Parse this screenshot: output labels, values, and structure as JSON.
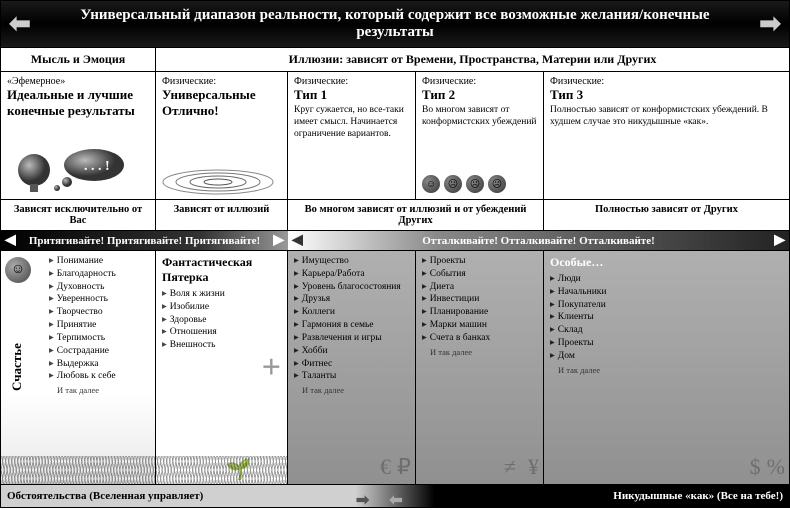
{
  "banner": "Универсальный диапазон реальности, который содержит все возможные желания/конечные результаты",
  "header_left": "Мысль и Эмоция",
  "header_right": "Иллюзии: зависят от Времени, Пространства, Материи или Других",
  "types": {
    "c1": {
      "sub": "«Эфемерное»",
      "title": "Идеальные и лучшие конечные результаты"
    },
    "c2": {
      "sub": "Физические:",
      "title": "Универсальные Отлично!"
    },
    "c3": {
      "sub": "Физические:",
      "title": "Тип 1",
      "desc": "Круг сужается, но все-таки имеет смысл. Начинается ограничение вариантов."
    },
    "c4": {
      "sub": "Физические:",
      "title": "Тип 2",
      "desc": "Во многом зависят от конформистских убеждений"
    },
    "c5": {
      "sub": "Физические:",
      "title": "Тип 3",
      "desc": "Полностью зависят от конформистских убеждений. В худшем случае это никудышные «как»."
    }
  },
  "depends": {
    "d1": "Зависят исключительно от Вас",
    "d2": "Зависят от иллюзий",
    "d3": "Во многом зависят от иллюзий и от убеждений Других",
    "d4": "Полностью зависят от Других"
  },
  "attract": "Притягивайте! Притягивайте! Притягивайте!",
  "repel": "Отталкивайте! Отталкивайте! Отталкивайте!",
  "happiness": "Счастье",
  "lists": {
    "l1": [
      "Понимание",
      "Благодарность",
      "Духовность",
      "Уверенность",
      "Творчество",
      "Принятие",
      "Терпимость",
      "Сострадание",
      "Выдержка",
      "Любовь к себе"
    ],
    "l2_title": "Фантастическая Пятерка",
    "l2": [
      "Воля к жизни",
      "Изобилие",
      "Здоровье",
      "Отношения",
      "Внешность"
    ],
    "l3": [
      "Имущество",
      "Карьера/Работа",
      "Уровень благосостояния",
      "Друзья",
      "Коллеги",
      "Гармония в семье",
      "Развлечения и игры",
      "Хобби",
      "Фитнес",
      "Таланты"
    ],
    "l4": [
      "Проекты",
      "События",
      "Диета",
      "Инвестиции",
      "Планирование",
      "Марки машин",
      "Счета в банках"
    ],
    "l5_title": "Особые…",
    "l5": [
      "Люди",
      "Начальники",
      "Покупатели",
      "Клиенты",
      "Склад",
      "Проекты",
      "Дом"
    ]
  },
  "more": "И так далее",
  "footer_left": "Обстоятельства (Вселенная управляет)",
  "footer_right": "Никудышные «как» (Все на тебе!)"
}
